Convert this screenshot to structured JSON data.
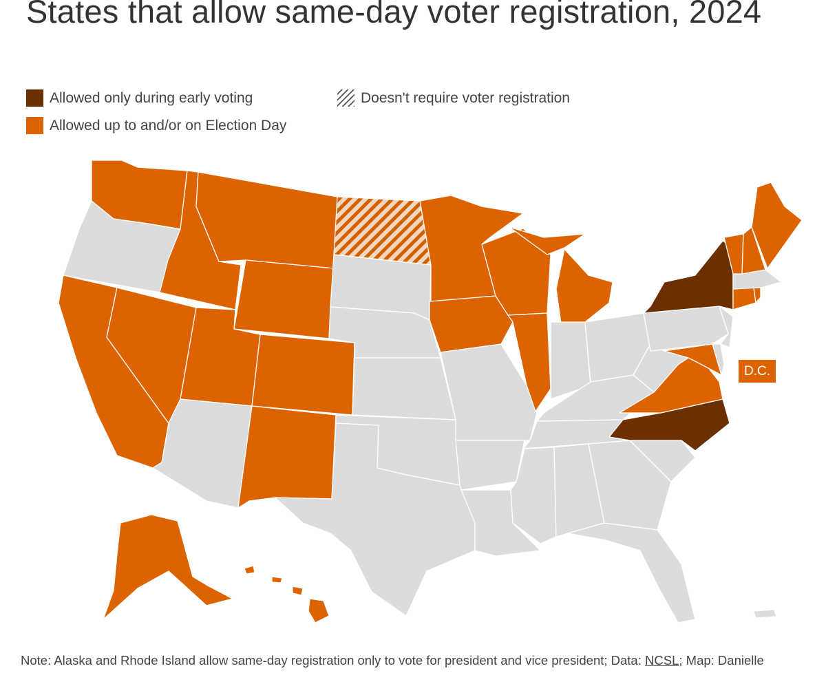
{
  "title": "States that allow same-day voter registration, 2024",
  "legend": [
    {
      "label": "Allowed only during early voting",
      "color": "#6b2f00"
    },
    {
      "label": "Allowed up to and/or on Election Day",
      "color": "#dc6300"
    },
    {
      "label": "Doesn't require voter registration",
      "pattern": "hatch"
    }
  ],
  "colors": {
    "early": "#6b2f00",
    "election_day": "#dc6300",
    "none": "#dcdcdc",
    "hatch": "#dc6300"
  },
  "dc_label": "D.C.",
  "states": {
    "election_day": [
      "WA",
      "ID",
      "MT",
      "WY",
      "CA",
      "NV",
      "UT",
      "CO",
      "NM",
      "MN",
      "IA",
      "WI",
      "IL",
      "MI",
      "ME",
      "VT",
      "NH",
      "CT",
      "RI",
      "MD",
      "VA",
      "DC",
      "AK",
      "HI"
    ],
    "early": [
      "NY",
      "NC"
    ],
    "no_registration": [
      "ND"
    ]
  },
  "note": {
    "prefix": "Note: Alaska and Rhode Island allow same-day registration only to vote for president and vice president; Data: ",
    "source_link": "NCSL",
    "suffix": "; Map: Danielle"
  }
}
